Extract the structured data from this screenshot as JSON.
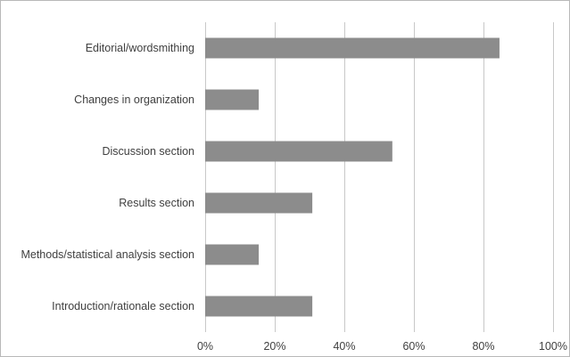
{
  "chart_data": {
    "type": "bar",
    "orientation": "horizontal",
    "title": "",
    "xlabel": "",
    "ylabel": "",
    "categories": [
      "Editorial/wordsmithing",
      "Changes in organization",
      "Discussion section",
      "Results section",
      "Methods/statistical analysis section",
      "Introduction/rationale section"
    ],
    "values": [
      0.846,
      0.154,
      0.538,
      0.308,
      0.154,
      0.308
    ],
    "xlim": [
      0,
      1
    ],
    "ticks": [
      0,
      0.2,
      0.4,
      0.6,
      0.8,
      1.0
    ],
    "tick_labels": [
      "0%",
      "20%",
      "40%",
      "60%",
      "80%",
      "100%"
    ],
    "grid": "vertical",
    "legend": "none",
    "bar_color": "#8c8c8c",
    "grid_color": "#c8c8c8"
  }
}
